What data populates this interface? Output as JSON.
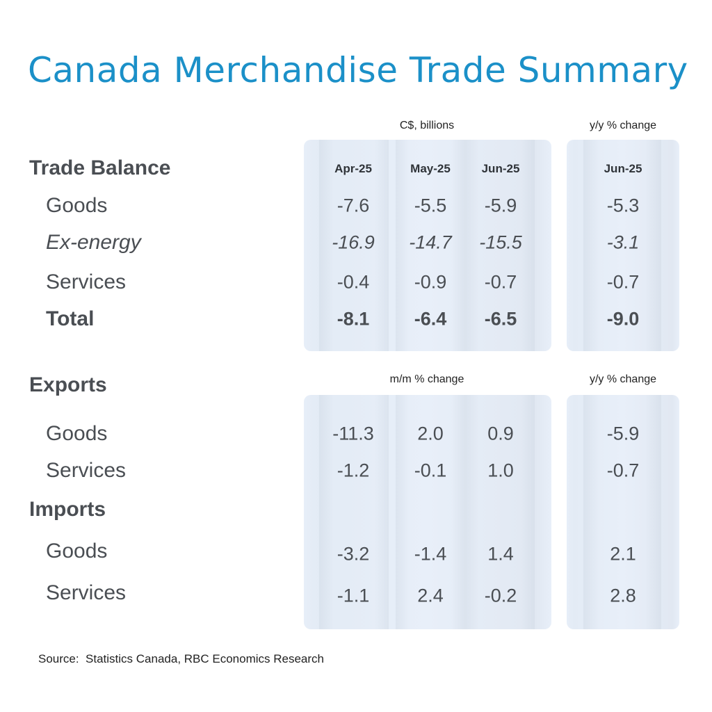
{
  "title": "Canada Merchandise Trade Summary",
  "units": {
    "billions": "C$, billions",
    "yy1": "y/y % change",
    "mm": "m/m % change",
    "yy2": "y/y % change"
  },
  "headers": {
    "apr": "Apr-25",
    "may": "May-25",
    "jun": "Jun-25",
    "yy_jun": "Jun-25"
  },
  "sections": {
    "trade_balance": "Trade Balance",
    "exports": "Exports",
    "imports": "Imports"
  },
  "rows": [
    {
      "label": "Goods",
      "style": "normal",
      "values": [
        "-7.6",
        "-5.5",
        "-5.9",
        "-5.3"
      ]
    },
    {
      "label": "Ex-energy",
      "style": "italic",
      "values": [
        "-16.9",
        "-14.7",
        "-15.5",
        "-3.1"
      ]
    },
    {
      "label": "Services",
      "style": "normal",
      "values": [
        "-0.4",
        "-0.9",
        "-0.7",
        "-0.7"
      ]
    },
    {
      "label": "Total",
      "style": "bold",
      "values": [
        "-8.1",
        "-6.4",
        "-6.5",
        "-9.0"
      ]
    },
    {
      "label": "Goods",
      "style": "normal",
      "values": [
        "-11.3",
        "2.0",
        "0.9",
        "-5.9"
      ]
    },
    {
      "label": "Services",
      "style": "normal",
      "values": [
        "-1.2",
        "-0.1",
        "1.0",
        "-0.7"
      ]
    },
    {
      "label": "Goods",
      "style": "normal",
      "values": [
        "-3.2",
        "-1.4",
        "1.4",
        "2.1"
      ]
    },
    {
      "label": "Services",
      "style": "normal",
      "values": [
        "-1.1",
        "2.4",
        "-0.2",
        "2.8"
      ]
    }
  ],
  "source": "Source:  Statistics Canada, RBC Economics Research"
}
